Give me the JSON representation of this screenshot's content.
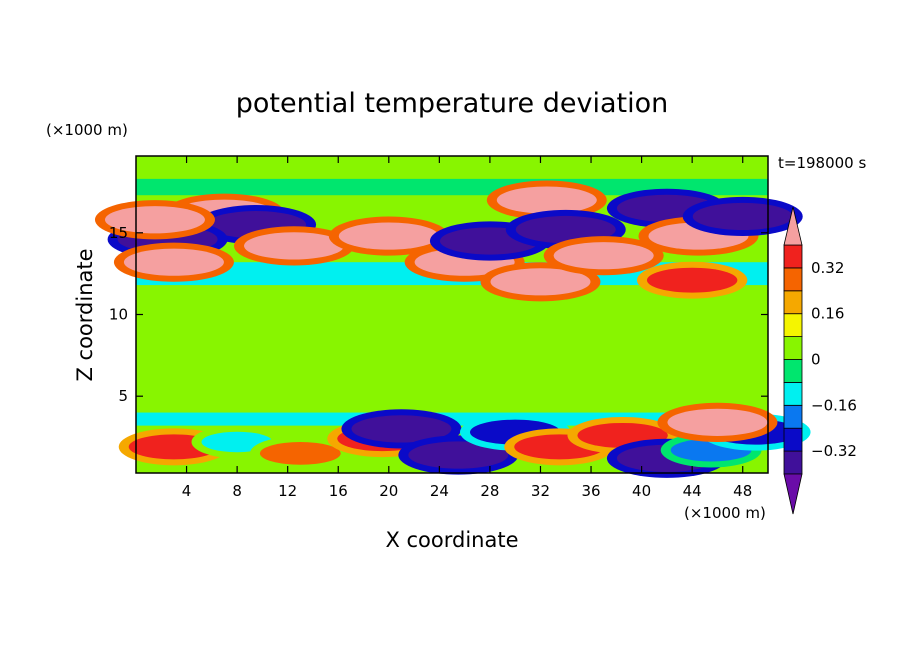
{
  "chart_data": {
    "type": "heatmap",
    "title": "potential temperature deviation",
    "xlabel": "X coordinate",
    "ylabel": "Z coordinate",
    "x_unit": "(×1000 m)",
    "y_unit": "(×1000 m)",
    "time_label": "t=198000 s",
    "xlim": [
      0,
      50
    ],
    "ylim": [
      0.3,
      19.7
    ],
    "x_ticks": [
      4,
      8,
      12,
      16,
      20,
      24,
      28,
      32,
      36,
      40,
      44,
      48
    ],
    "y_ticks": [
      5,
      10,
      15
    ],
    "colorbar": {
      "levels": [
        -0.4,
        -0.32,
        -0.24,
        -0.16,
        -0.08,
        0,
        0.08,
        0.16,
        0.24,
        0.32,
        0.4
      ],
      "tick_values": [
        0.32,
        0.16,
        0,
        -0.16,
        -0.32
      ],
      "tick_labels": [
        "0.32",
        "0.16",
        "0",
        "−0.16",
        "−0.32"
      ],
      "colors_low_to_high": [
        "#6a0ca8",
        "#40109a",
        "#0a0ac8",
        "#0a78f0",
        "#00f0f0",
        "#00e66e",
        "#88f500",
        "#f5f500",
        "#f5a800",
        "#f56400",
        "#f0221e",
        "#f5a0a0"
      ]
    },
    "features": [
      {
        "kind": "band",
        "x": [
          0,
          50
        ],
        "z": [
          11.8,
          13.2
        ],
        "value": -0.16
      },
      {
        "kind": "band",
        "x": [
          0,
          50
        ],
        "z": [
          17.3,
          18.3
        ],
        "value": -0.08
      },
      {
        "kind": "band",
        "x": [
          0,
          50
        ],
        "z": [
          3.2,
          4.0
        ],
        "value": -0.16
      },
      {
        "kind": "band",
        "x": [
          0,
          50
        ],
        "z": [
          0.3,
          2.5
        ],
        "value": 0
      },
      {
        "kind": "blob",
        "x": 7,
        "z": 16.2,
        "value": 0.4
      },
      {
        "kind": "blob",
        "x": 9.5,
        "z": 15.5,
        "value": -0.4
      },
      {
        "kind": "blob",
        "x": 2.5,
        "z": 14.6,
        "value": -0.4
      },
      {
        "kind": "blob",
        "x": 1.5,
        "z": 15.8,
        "value": 0.4
      },
      {
        "kind": "blob",
        "x": 3,
        "z": 13.2,
        "value": 0.4
      },
      {
        "kind": "blob",
        "x": 12.5,
        "z": 14.2,
        "value": 0.4
      },
      {
        "kind": "blob",
        "x": 20,
        "z": 14.8,
        "value": 0.4
      },
      {
        "kind": "blob",
        "x": 26,
        "z": 13.2,
        "value": 0.4
      },
      {
        "kind": "blob",
        "x": 28,
        "z": 14.5,
        "value": -0.4
      },
      {
        "kind": "blob",
        "x": 32,
        "z": 12.0,
        "value": 0.4
      },
      {
        "kind": "blob",
        "x": 32.5,
        "z": 17.0,
        "value": 0.4
      },
      {
        "kind": "blob",
        "x": 34,
        "z": 15.2,
        "value": -0.4
      },
      {
        "kind": "blob",
        "x": 37,
        "z": 13.6,
        "value": 0.4
      },
      {
        "kind": "blob",
        "x": 42,
        "z": 16.5,
        "value": -0.4
      },
      {
        "kind": "blob",
        "x": 44.5,
        "z": 14.8,
        "value": 0.4
      },
      {
        "kind": "blob",
        "x": 44,
        "z": 12.1,
        "value": 0.32
      },
      {
        "kind": "blob",
        "x": 48,
        "z": 16.0,
        "value": -0.4
      },
      {
        "kind": "blob",
        "x": 3,
        "z": 1.9,
        "value": 0.32
      },
      {
        "kind": "blob",
        "x": 8,
        "z": 2.2,
        "value": -0.16
      },
      {
        "kind": "blob",
        "x": 13,
        "z": 1.5,
        "value": 0.24
      },
      {
        "kind": "blob",
        "x": 19.5,
        "z": 2.4,
        "value": 0.32
      },
      {
        "kind": "blob",
        "x": 21,
        "z": 3.0,
        "value": -0.4
      },
      {
        "kind": "blob",
        "x": 25.5,
        "z": 1.4,
        "value": -0.4
      },
      {
        "kind": "blob",
        "x": 30,
        "z": 2.8,
        "value": -0.32
      },
      {
        "kind": "blob",
        "x": 33.5,
        "z": 1.9,
        "value": 0.32
      },
      {
        "kind": "blob",
        "x": 38.5,
        "z": 2.6,
        "value": 0.32
      },
      {
        "kind": "blob",
        "x": 42,
        "z": 1.2,
        "value": -0.4
      },
      {
        "kind": "blob",
        "x": 45.5,
        "z": 1.7,
        "value": -0.24
      },
      {
        "kind": "blob",
        "x": 49,
        "z": 2.8,
        "value": -0.32
      },
      {
        "kind": "blob",
        "x": 46,
        "z": 3.4,
        "value": 0.4
      }
    ]
  }
}
